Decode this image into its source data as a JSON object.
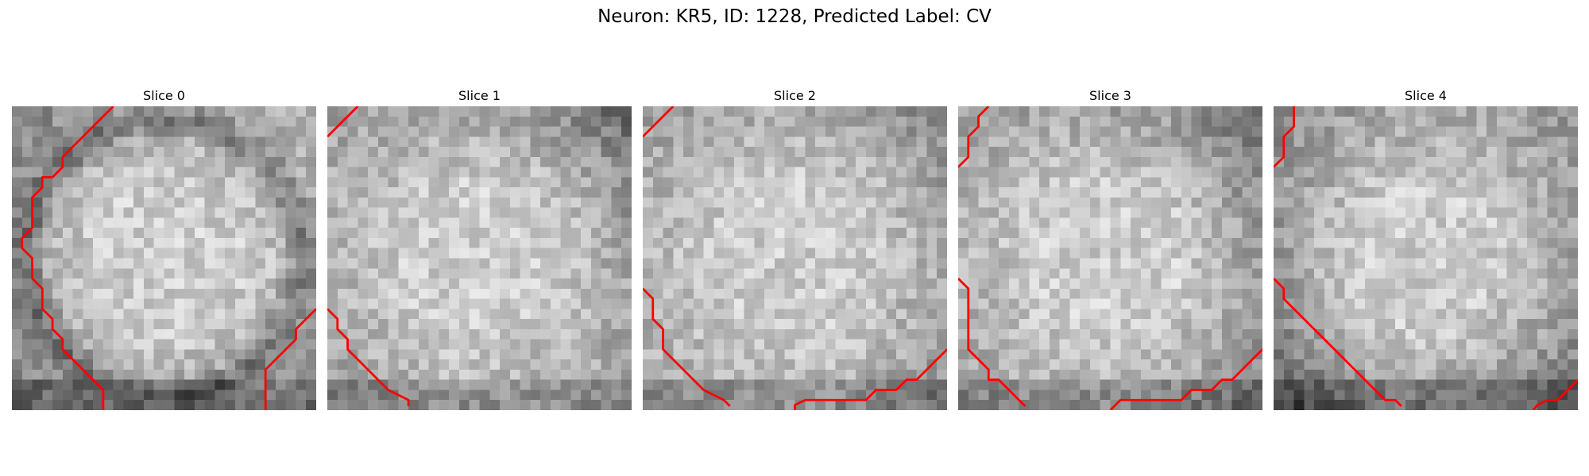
{
  "figure": {
    "title": "Neuron: KR5, ID: 1228, Predicted Label: CV"
  },
  "slices": [
    {
      "title": "Slice 0",
      "image": "grayscale-microscopy-slice",
      "contours": [
        [
          [
            10,
            0
          ],
          [
            8,
            2
          ],
          [
            6,
            4
          ],
          [
            5,
            5
          ],
          [
            5,
            6
          ],
          [
            4,
            7
          ],
          [
            3,
            7
          ],
          [
            3,
            8
          ],
          [
            2,
            9
          ],
          [
            2,
            10
          ],
          [
            2,
            11
          ],
          [
            2,
            12
          ],
          [
            1,
            13
          ],
          [
            1,
            14
          ],
          [
            2,
            15
          ],
          [
            2,
            16
          ],
          [
            2,
            17
          ],
          [
            3,
            18
          ],
          [
            3,
            19
          ],
          [
            3,
            20
          ],
          [
            4,
            21
          ],
          [
            4,
            22
          ],
          [
            5,
            23
          ],
          [
            5,
            24
          ],
          [
            6,
            25
          ],
          [
            7,
            26
          ],
          [
            8,
            27
          ],
          [
            9,
            28
          ],
          [
            9,
            29
          ],
          [
            9,
            30
          ]
        ],
        [
          [
            30,
            20
          ],
          [
            29,
            21
          ],
          [
            28,
            22
          ],
          [
            28,
            23
          ],
          [
            27,
            24
          ],
          [
            26,
            25
          ],
          [
            25,
            26
          ],
          [
            25,
            27
          ],
          [
            25,
            28
          ],
          [
            25,
            29
          ],
          [
            25,
            30
          ]
        ]
      ]
    },
    {
      "title": "Slice 1",
      "image": "grayscale-microscopy-slice",
      "contours": [
        [
          [
            3,
            0
          ],
          [
            1,
            2
          ],
          [
            0,
            3
          ]
        ],
        [
          [
            0,
            20
          ],
          [
            1,
            21
          ],
          [
            1,
            22
          ],
          [
            2,
            23
          ],
          [
            2,
            24
          ],
          [
            3,
            25
          ],
          [
            4,
            26
          ],
          [
            5,
            27
          ],
          [
            6,
            28
          ],
          [
            8,
            29
          ],
          [
            8,
            29.6
          ]
        ]
      ]
    },
    {
      "title": "Slice 2",
      "image": "grayscale-microscopy-slice",
      "contours": [
        [
          [
            3,
            0
          ],
          [
            1,
            2
          ],
          [
            0,
            3
          ]
        ],
        [
          [
            0,
            18
          ],
          [
            1,
            19
          ],
          [
            1,
            20
          ],
          [
            1,
            21
          ],
          [
            2,
            22
          ],
          [
            2,
            23
          ],
          [
            2,
            24
          ],
          [
            3,
            25
          ],
          [
            4,
            26
          ],
          [
            5,
            27
          ],
          [
            6,
            28
          ],
          [
            8,
            29
          ],
          [
            8.6,
            29.6
          ]
        ],
        [
          [
            15,
            30
          ],
          [
            15,
            29.5
          ],
          [
            16,
            29
          ],
          [
            17,
            29
          ],
          [
            19,
            29
          ],
          [
            21,
            29
          ],
          [
            22,
            29
          ],
          [
            23,
            28
          ],
          [
            24,
            28
          ],
          [
            25,
            28
          ],
          [
            26,
            27
          ],
          [
            27,
            27
          ],
          [
            28,
            26
          ],
          [
            29,
            25
          ],
          [
            30,
            24
          ]
        ]
      ]
    },
    {
      "title": "Slice 3",
      "image": "grayscale-microscopy-slice",
      "contours": [
        [
          [
            3,
            0
          ],
          [
            2,
            1
          ],
          [
            2,
            2
          ],
          [
            1,
            3
          ],
          [
            1,
            4
          ],
          [
            1,
            5
          ],
          [
            0,
            6
          ]
        ],
        [
          [
            0,
            17
          ],
          [
            1,
            18
          ],
          [
            1,
            19
          ],
          [
            1,
            20
          ],
          [
            1,
            21
          ],
          [
            1,
            22
          ],
          [
            1,
            23
          ],
          [
            1,
            24
          ],
          [
            2,
            25
          ],
          [
            3,
            26
          ],
          [
            3,
            27
          ],
          [
            4,
            27
          ],
          [
            5,
            28
          ],
          [
            6,
            29
          ],
          [
            6.6,
            29.6
          ]
        ],
        [
          [
            15,
            30
          ],
          [
            16,
            29
          ],
          [
            18,
            29
          ],
          [
            20,
            29
          ],
          [
            22,
            29
          ],
          [
            23,
            28
          ],
          [
            24,
            28
          ],
          [
            25,
            28
          ],
          [
            26,
            27
          ],
          [
            27,
            27
          ],
          [
            28,
            26
          ],
          [
            29,
            25
          ],
          [
            30,
            24
          ]
        ]
      ]
    },
    {
      "title": "Slice 4",
      "image": "grayscale-microscopy-slice",
      "contours": [
        [
          [
            2,
            0
          ],
          [
            2,
            1
          ],
          [
            2,
            2
          ],
          [
            1,
            3
          ],
          [
            1,
            4
          ],
          [
            1,
            5
          ],
          [
            0,
            6
          ]
        ],
        [
          [
            0,
            17
          ],
          [
            1,
            18
          ],
          [
            1,
            19
          ],
          [
            2,
            20
          ],
          [
            3,
            21
          ],
          [
            4,
            22
          ],
          [
            5,
            23
          ],
          [
            6,
            24
          ],
          [
            7,
            25
          ],
          [
            8,
            26
          ],
          [
            9,
            27
          ],
          [
            10,
            28
          ],
          [
            11,
            29
          ],
          [
            12,
            29
          ],
          [
            12.6,
            29.6
          ]
        ],
        [
          [
            25.6,
            30
          ],
          [
            26,
            29.5
          ],
          [
            27,
            29
          ],
          [
            28,
            29
          ],
          [
            29,
            28
          ],
          [
            30,
            27
          ]
        ]
      ]
    }
  ],
  "style": {
    "contour_color": "#ff0000",
    "background": "#ffffff"
  }
}
